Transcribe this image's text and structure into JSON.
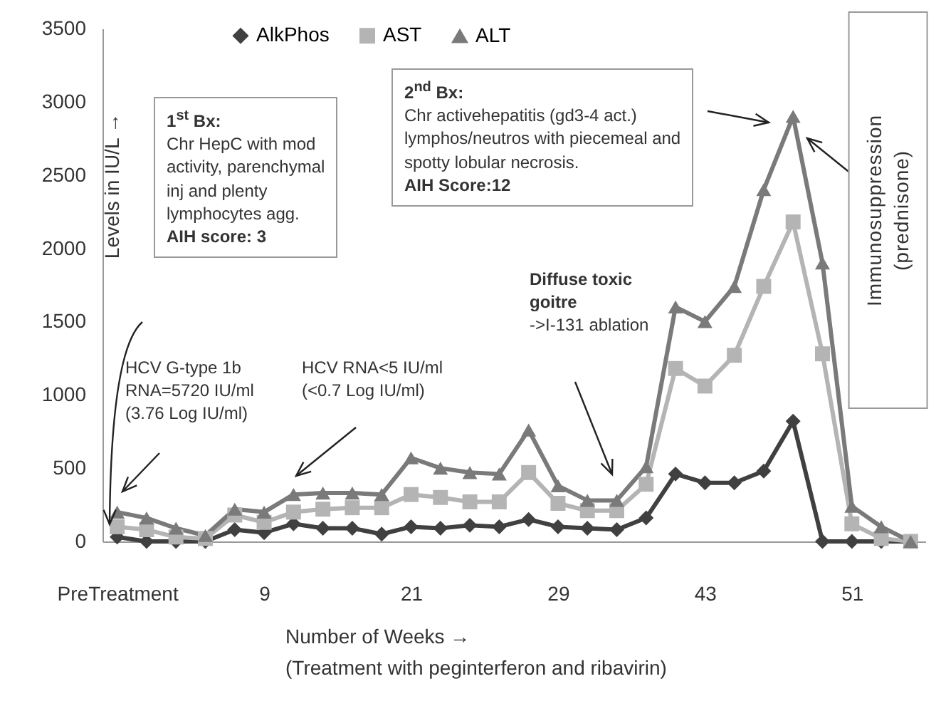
{
  "chart_data": {
    "type": "line",
    "xlabel": "Number of Weeks →",
    "ylabel": "Levels in IU/L →",
    "categories": [
      "PreTreatment",
      null,
      null,
      null,
      null,
      "9",
      null,
      null,
      null,
      null,
      "21",
      null,
      null,
      null,
      null,
      "29",
      null,
      null,
      null,
      null,
      "43",
      null,
      null,
      null,
      null,
      "51",
      null,
      null
    ],
    "series": [
      {
        "name": "AlkPhos",
        "color": "#404040",
        "marker": "diamond",
        "values": [
          30,
          0,
          0,
          0,
          80,
          60,
          120,
          90,
          90,
          50,
          100,
          90,
          110,
          100,
          150,
          100,
          90,
          80,
          160,
          460,
          400,
          400,
          480,
          820,
          0,
          0,
          0,
          0
        ]
      },
      {
        "name": "AST",
        "color": "#b4b4b4",
        "marker": "square",
        "values": [
          100,
          80,
          30,
          20,
          180,
          130,
          200,
          220,
          230,
          230,
          320,
          300,
          270,
          270,
          470,
          260,
          210,
          210,
          390,
          1180,
          1060,
          1270,
          1740,
          2180,
          1280,
          120,
          20,
          0
        ]
      },
      {
        "name": "ALT",
        "color": "#7a7a7a",
        "marker": "triangle",
        "values": [
          200,
          160,
          90,
          40,
          220,
          200,
          320,
          330,
          330,
          320,
          570,
          500,
          470,
          460,
          760,
          380,
          280,
          280,
          510,
          1600,
          1500,
          1740,
          2400,
          2900,
          1900,
          240,
          100,
          0
        ]
      }
    ],
    "ylim": [
      0,
      3500
    ],
    "yticks": [
      0,
      500,
      1000,
      1500,
      2000,
      2500,
      3000,
      3500
    ],
    "grid": false,
    "legend": "top",
    "annotations": [
      "1$^{st}$ Bx:\nChr HepC with mod\nactivity, parenchymal\ninj and plenty\nlymphocytes agg.\nAIH score: 3",
      "2$^{nd}$ Bx:\nChr activehepatitis (gd3-4 act.)\nlymphos/neutros with piecemeal and\nspotty lobular necrosis.\nAIH Score:12",
      "HCV G-type 1b\nRNA=5720 IU/ml\n(3.76 Log IU/ml)",
      "HCV RNA<5 IU/ml\n(<0.7 Log IU/ml)",
      "Diffuse toxic\ngoitre\n->I-131 ablation",
      "Immunosuppression\n(prednisone)",
      "(Treatment with peginterferon and ribavirin)"
    ]
  }
}
